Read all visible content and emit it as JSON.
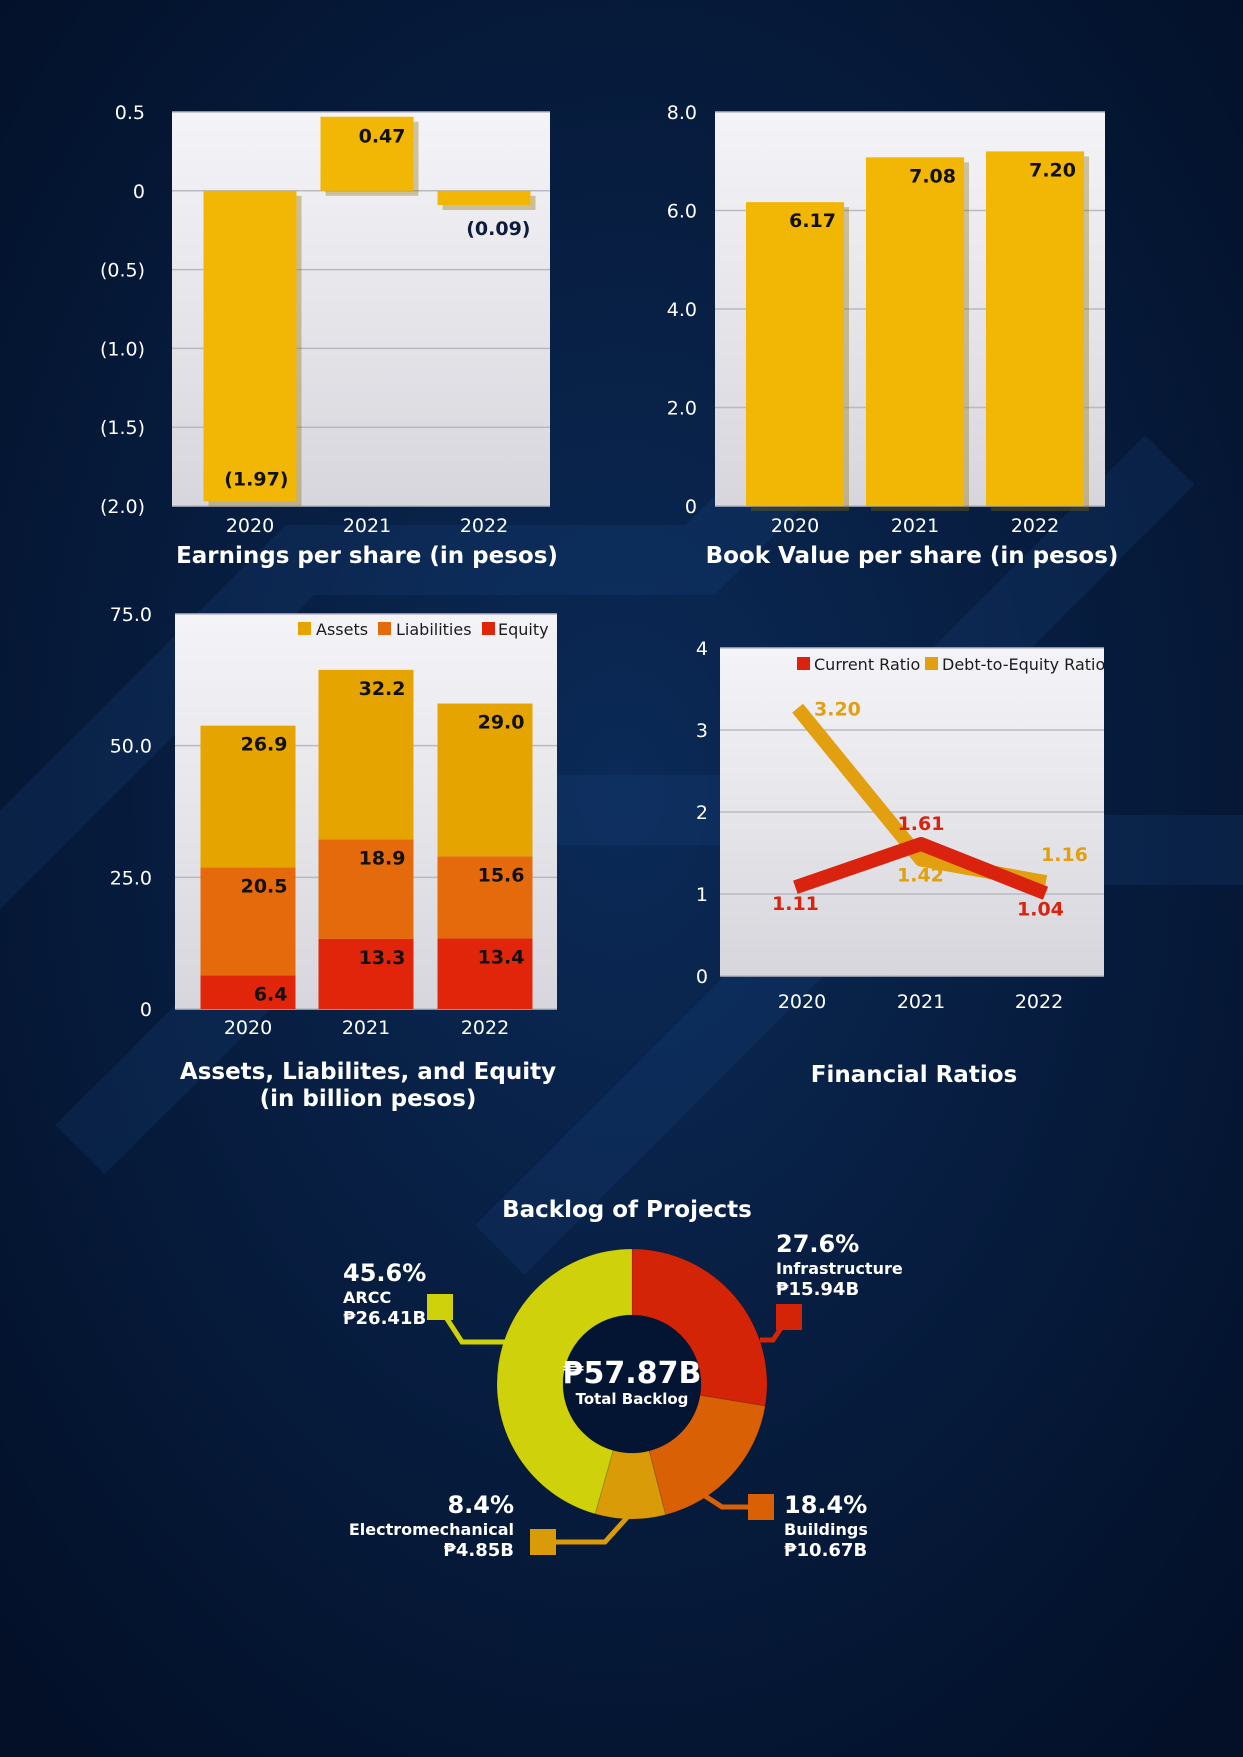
{
  "colors": {
    "background": "#041433",
    "gold": "#F2B705",
    "assets": "#E6A400",
    "liabilities": "#E46A0C",
    "equity": "#E0250A",
    "current_ratio": "#D9230F",
    "de_ratio": "#E2A010",
    "arcc": "#CFD20A",
    "infrastructure": "#D42408",
    "buildings": "#D96004",
    "electromechanical": "#D99B08"
  },
  "chart_data": [
    {
      "id": "eps",
      "type": "bar",
      "title": "Earnings per share (in pesos)",
      "categories": [
        "2020",
        "2021",
        "2022"
      ],
      "values": [
        -1.97,
        0.47,
        -0.09
      ],
      "value_labels": [
        "(1.97)",
        "0.47",
        "(0.09)"
      ],
      "ylim": [
        -2.0,
        0.5
      ],
      "yticks": [
        0.5,
        0,
        -0.5,
        -1.0,
        -1.5,
        -2.0
      ],
      "ytick_labels": [
        "0.5",
        "0",
        "(0.5)",
        "(1.0)",
        "(1.5)",
        "(2.0)"
      ],
      "grid": true
    },
    {
      "id": "bvps",
      "type": "bar",
      "title": "Book Value per share (in pesos)",
      "categories": [
        "2020",
        "2021",
        "2022"
      ],
      "values": [
        6.17,
        7.08,
        7.2
      ],
      "value_labels": [
        "6.17",
        "7.08",
        "7.20"
      ],
      "ylim": [
        0,
        8.0
      ],
      "yticks": [
        8.0,
        6.0,
        4.0,
        2.0,
        0
      ],
      "ytick_labels": [
        "8.0",
        "6.0",
        "4.0",
        "2.0",
        "0"
      ],
      "grid": true
    },
    {
      "id": "ale",
      "type": "bar",
      "stacked": true,
      "title_lines": [
        "Assets, Liabilites, and Equity",
        "(in billion pesos)"
      ],
      "categories": [
        "2020",
        "2021",
        "2022"
      ],
      "series": [
        {
          "name": "Equity",
          "values": [
            6.4,
            13.3,
            13.4
          ],
          "labels": [
            "6.4",
            "13.3",
            "13.4"
          ]
        },
        {
          "name": "Liabilities",
          "values": [
            20.5,
            18.9,
            15.6
          ],
          "labels": [
            "20.5",
            "18.9",
            "15.6"
          ]
        },
        {
          "name": "Assets",
          "values": [
            26.9,
            32.2,
            29.0
          ],
          "labels": [
            "26.9",
            "32.2",
            "29.0"
          ]
        }
      ],
      "legend": [
        "Assets",
        "Liabilities",
        "Equity"
      ],
      "legend_position": "top-right",
      "ylim": [
        0,
        75.0
      ],
      "yticks": [
        75.0,
        50.0,
        25.0,
        0
      ],
      "ytick_labels": [
        "75.0",
        "50.0",
        "25.0",
        "0"
      ],
      "grid": true
    },
    {
      "id": "ratios",
      "type": "line",
      "title": "Financial Ratios",
      "categories": [
        "2020",
        "2021",
        "2022"
      ],
      "series": [
        {
          "name": "Current Ratio",
          "values": [
            1.11,
            1.61,
            1.04
          ],
          "labels": [
            "1.11",
            "1.61",
            "1.04"
          ]
        },
        {
          "name": "Debt-to-Equity Ratio",
          "values": [
            3.2,
            1.42,
            1.16
          ],
          "labels": [
            "3.20",
            "1.42",
            "1.16"
          ]
        }
      ],
      "legend_position": "top-right",
      "ylim": [
        0,
        4
      ],
      "yticks": [
        4,
        3,
        2,
        1,
        0
      ],
      "ytick_labels": [
        "4",
        "3",
        "2",
        "1",
        "0"
      ],
      "grid": true
    },
    {
      "id": "backlog",
      "type": "pie",
      "donut": true,
      "title": "Backlog of Projects",
      "center_value": "₱57.87B",
      "center_label": "Total Backlog",
      "slices": [
        {
          "name": "Infrastructure",
          "percent": 27.6,
          "pct_label": "27.6%",
          "amount": "₱15.94B",
          "color_key": "infrastructure"
        },
        {
          "name": "Buildings",
          "percent": 18.4,
          "pct_label": "18.4%",
          "amount": "₱10.67B",
          "color_key": "buildings"
        },
        {
          "name": "Electromechanical",
          "percent": 8.4,
          "pct_label": "8.4%",
          "amount": "₱4.85B",
          "color_key": "electromechanical"
        },
        {
          "name": "ARCC",
          "percent": 45.6,
          "pct_label": "45.6%",
          "amount": "₱26.41B",
          "color_key": "arcc"
        }
      ]
    }
  ]
}
